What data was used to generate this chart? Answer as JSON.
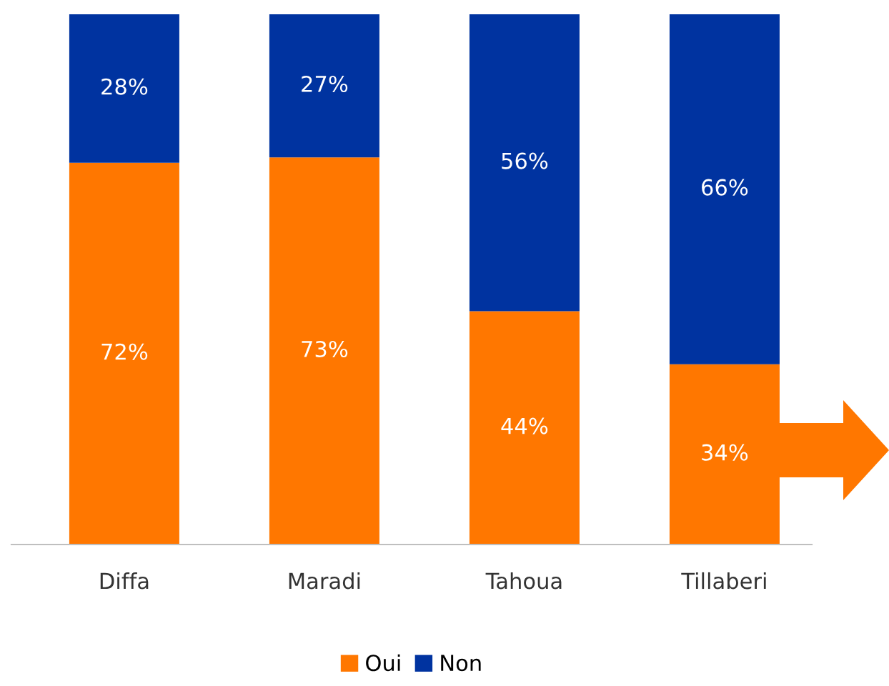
{
  "chart_data": {
    "type": "bar",
    "stacked": true,
    "categories": [
      "Diffa",
      "Maradi",
      "Tahoua",
      "Tillaberi"
    ],
    "series": [
      {
        "name": "Oui",
        "color": "#ff7700",
        "values": [
          72,
          73,
          44,
          34
        ],
        "value_labels": [
          "72%",
          "73%",
          "44%",
          "34%"
        ]
      },
      {
        "name": "Non",
        "color": "#0033a0",
        "values": [
          28,
          27,
          56,
          66
        ],
        "value_labels": [
          "28%",
          "27%",
          "56%",
          "66%"
        ]
      }
    ],
    "ylim": [
      0,
      100
    ],
    "tick_labels": "x",
    "grid": false,
    "legend": "bottom"
  }
}
